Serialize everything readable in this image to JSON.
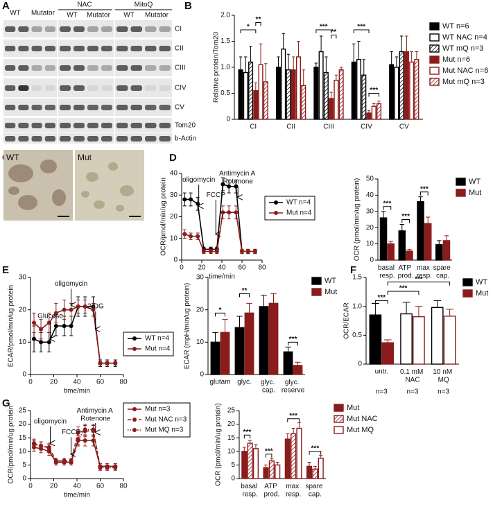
{
  "panels": [
    "A",
    "B",
    "C",
    "D",
    "E",
    "F",
    "G"
  ],
  "blot": {
    "lanes": [
      "WT",
      "Mutator",
      "WT",
      "Mutator",
      "WT",
      "Mutator"
    ],
    "groups": [
      "NAC",
      "MitoQ"
    ],
    "bands": [
      "CI",
      "CII",
      "CIII",
      "CIV",
      "CV",
      "Tom20",
      "b-Actin"
    ]
  },
  "micrograph": {
    "labels": [
      "WT",
      "Mut"
    ]
  },
  "chart_data": [
    {
      "type": "bar",
      "ylabel": "Relative protein/Tom20",
      "categories": [
        "CI",
        "CII",
        "CIII",
        "CIV",
        "CV"
      ],
      "series": [
        {
          "name": "WT n=6",
          "color": "#000000",
          "values": [
            0.95,
            1.0,
            1.0,
            1.1,
            1.05
          ],
          "errors": [
            0.25,
            0.2,
            0.08,
            0.35,
            0.25
          ]
        },
        {
          "name": "WT NAC n=4",
          "color": "#000000",
          "fill": "#ffffff",
          "values": [
            0.9,
            1.35,
            1.3,
            1.15,
            1.0
          ],
          "errors": [
            0.3,
            0.3,
            0.3,
            0.35,
            0.2
          ]
        },
        {
          "name": "WT mQ n=3",
          "color": "#000000",
          "pattern": "hatch",
          "values": [
            1.1,
            0.95,
            0.9,
            0.85,
            1.3
          ],
          "errors": [
            0.3,
            0.3,
            0.3,
            0.3,
            0.3
          ]
        },
        {
          "name": "Mut n=6",
          "color": "#8b1c1c",
          "values": [
            0.55,
            0.95,
            0.4,
            0.12,
            1.3
          ],
          "errors": [
            0.15,
            0.25,
            0.12,
            0.05,
            0.3
          ]
        },
        {
          "name": "Mut NAC n=6",
          "color": "#8b1c1c",
          "fill": "#ffffff",
          "values": [
            1.05,
            1.2,
            0.75,
            0.25,
            1.1
          ],
          "errors": [
            0.4,
            0.3,
            0.1,
            0.05,
            0.2
          ]
        },
        {
          "name": "Mut mQ n=3",
          "color": "#8b1c1c",
          "pattern": "hatch",
          "values": [
            0.72,
            0.65,
            0.95,
            0.3,
            1.15
          ],
          "errors": [
            0.35,
            0.3,
            0.05,
            0.05,
            0.15
          ]
        }
      ],
      "ylim": [
        0,
        2
      ],
      "yticks": [
        0,
        0.5,
        {
          "value": 1,
          "label": "1.0"
        },
        1.5,
        {
          "value": 2,
          "label": "2.0"
        }
      ],
      "annotations": [
        "*",
        "**",
        "***",
        "**",
        "***",
        "***"
      ]
    },
    {
      "type": "line",
      "xlabel": "time/min",
      "ylabel": "OCR/pmol/min/ug protein",
      "x": [
        3,
        9,
        16,
        22,
        29,
        35,
        41,
        47,
        54,
        60,
        66,
        73
      ],
      "series": [
        {
          "name": "WT n=4",
          "color": "#000000",
          "values": [
            28,
            28,
            26,
            5,
            5,
            5,
            35,
            34,
            34,
            4,
            4,
            4
          ],
          "errors": [
            3,
            3,
            3,
            1,
            1,
            1,
            3,
            3,
            3,
            1,
            1,
            1
          ]
        },
        {
          "name": "Mut n=4",
          "color": "#8b1c1c",
          "values": [
            12,
            11,
            11,
            4,
            4,
            4,
            22,
            22,
            22,
            4,
            4,
            4
          ],
          "errors": [
            2,
            1.5,
            1.5,
            1,
            1,
            1,
            3,
            3,
            3,
            1,
            1,
            1
          ]
        }
      ],
      "xlim": [
        0,
        80
      ],
      "xticks": [
        0,
        20,
        40,
        60,
        80
      ],
      "ylim": [
        0,
        40
      ],
      "yticks": [
        0,
        10,
        20,
        30,
        40
      ],
      "annotations": [
        "oligomycin",
        "FCCP",
        "Antimycin A Rotenone"
      ]
    },
    {
      "type": "bar",
      "ylabel": "OCR (pmol/min/ug protein)",
      "categories": [
        "basal resp.",
        "ATP prod.",
        "max resp.",
        "spare cap."
      ],
      "series": [
        {
          "name": "WT",
          "color": "#000000",
          "values": [
            26,
            18,
            36,
            9.5
          ],
          "errors": [
            4,
            4,
            3,
            2.5
          ]
        },
        {
          "name": "Mut",
          "color": "#8b1c1c",
          "values": [
            10,
            5.5,
            22.5,
            12
          ],
          "errors": [
            1.5,
            1,
            4,
            3
          ]
        }
      ],
      "ylim": [
        0,
        50
      ],
      "yticks": [
        0,
        10,
        20,
        30,
        40,
        50
      ],
      "annotations": [
        "***",
        "***",
        "***"
      ]
    },
    {
      "type": "line",
      "xlabel": "time/min",
      "ylabel": "ECAR/pmol/min/ug protein",
      "x": [
        3,
        9,
        16,
        22,
        29,
        35,
        41,
        47,
        54,
        60,
        66,
        73
      ],
      "series": [
        {
          "name": "WT n=4",
          "color": "#000000",
          "values": [
            11,
            10,
            10,
            15,
            15,
            15,
            21,
            21,
            21,
            3.5,
            3.5,
            3.5
          ],
          "errors": [
            4,
            3,
            3,
            3,
            3,
            3,
            3,
            3,
            3,
            1,
            1,
            1
          ]
        },
        {
          "name": "Mut n=4",
          "color": "#8b1c1c",
          "values": [
            16,
            14,
            16,
            19,
            20,
            20,
            21,
            21,
            20,
            3.5,
            3.5,
            3.5
          ],
          "errors": [
            3,
            3,
            3,
            3,
            3,
            2,
            2,
            2,
            2,
            0.5,
            0.5,
            0.5
          ]
        }
      ],
      "xlim": [
        0,
        80
      ],
      "xticks": [
        0,
        20,
        40,
        60,
        80
      ],
      "ylim": [
        0,
        30
      ],
      "yticks": [
        0,
        10,
        20,
        30
      ],
      "annotations": [
        "Glucose",
        "oligomycin",
        "2-DG"
      ]
    },
    {
      "type": "bar",
      "ylabel": "ECAR (mpH/min/ug protein)",
      "categories": [
        "glutam",
        "glyc.",
        "glyc. cap.",
        "glyc. reserve"
      ],
      "series": [
        {
          "name": "WT",
          "color": "#000000",
          "values": [
            10,
            14.5,
            21,
            7
          ],
          "errors": [
            3,
            3.5,
            3.5,
            1.5
          ]
        },
        {
          "name": "Mut",
          "color": "#8b1c1c",
          "values": [
            13,
            19,
            22,
            2.8
          ],
          "errors": [
            4,
            3,
            3,
            1
          ]
        }
      ],
      "ylim": [
        0,
        30
      ],
      "yticks": [
        0,
        10,
        20,
        30
      ],
      "annotations": [
        "*",
        "**",
        "***"
      ]
    },
    {
      "type": "bar",
      "ylabel": "OCR/ECAR",
      "categories": [
        "untr.",
        "0.1 mM NAC",
        "10 nM MQ"
      ],
      "n_labels": [
        "n=3",
        "n=3",
        "n=3"
      ],
      "series": [
        {
          "name": "WT",
          "color": "#000000",
          "fill": [
            "#000000",
            "#ffffff",
            "#ffffff"
          ],
          "values": [
            0.85,
            0.87,
            0.98
          ],
          "errors": [
            0.2,
            0.2,
            0.12
          ]
        },
        {
          "name": "Mut",
          "color": "#8b1c1c",
          "fill": [
            "#8b1c1c",
            "#ffffff",
            "#ffffff"
          ],
          "values": [
            0.37,
            0.82,
            0.83
          ],
          "errors": [
            0.05,
            0.18,
            0.12
          ]
        }
      ],
      "ylim": [
        0,
        1.5
      ],
      "yticks": [
        0,
        0.5,
        {
          "value": 1,
          "label": "1.0"
        },
        1.5
      ],
      "annotations": [
        "***",
        "***",
        "***"
      ]
    },
    {
      "type": "line",
      "xlabel": "time/min",
      "ylabel": "OCR/pmol/min/ug protein",
      "x": [
        3,
        9,
        16,
        22,
        29,
        35,
        41,
        47,
        54,
        60,
        66,
        73
      ],
      "series": [
        {
          "name": "Mut n=3",
          "color": "#8b1c1c",
          "dash": "solid",
          "values": [
            11.5,
            11,
            10,
            6,
            6,
            6,
            14,
            14,
            14,
            4.5,
            4.5,
            4.5
          ],
          "errors": [
            1.5,
            1.5,
            1.5,
            1,
            1,
            1,
            2,
            2,
            2,
            1,
            1,
            1
          ]
        },
        {
          "name": "Mut NAC n=3",
          "color": "#8b1c1c",
          "dash": "dashed",
          "values": [
            13,
            12,
            11.5,
            6.5,
            6.5,
            6.5,
            17,
            17.5,
            17.5,
            4.5,
            4.5,
            4.5
          ],
          "errors": [
            1.5,
            1.5,
            1.5,
            1,
            1,
            1,
            2,
            2,
            2,
            1,
            1,
            1
          ]
        },
        {
          "name": "Mut MQ n=3",
          "color": "#8b1c1c",
          "dash": "dotted",
          "values": [
            12.5,
            12,
            11,
            6,
            6,
            6,
            14.5,
            18,
            18,
            4,
            4,
            4
          ],
          "errors": [
            1.5,
            1.5,
            1.5,
            1,
            1,
            1,
            2,
            2,
            2,
            1,
            1,
            1
          ]
        }
      ],
      "xlim": [
        0,
        80
      ],
      "xticks": [
        0,
        20,
        40,
        60,
        80
      ],
      "ylim": [
        0,
        25
      ],
      "yticks": [
        0,
        5,
        10,
        15,
        20,
        25
      ],
      "annotations": [
        "oligomycin",
        "FCCP",
        "Antimycin A Rotenone"
      ]
    },
    {
      "type": "bar",
      "ylabel": "OCR (pmol/min/ug protein)",
      "categories": [
        "basal resp.",
        "ATP prod.",
        "max resp.",
        "spare cap."
      ],
      "series": [
        {
          "name": "Mut",
          "color": "#8b1c1c",
          "values": [
            10,
            4,
            14.5,
            4.5
          ],
          "errors": [
            1.5,
            1,
            2,
            1.5
          ]
        },
        {
          "name": "Mut NAC",
          "color": "#8b1c1c",
          "pattern": "hatch",
          "values": [
            13,
            6.5,
            16.5,
            3.5
          ],
          "errors": [
            1,
            1,
            2,
            1
          ]
        },
        {
          "name": "Mut MQ",
          "color": "#8b1c1c",
          "fill": "#ffffff",
          "values": [
            11,
            5,
            18.5,
            7.5
          ],
          "errors": [
            1.5,
            1,
            2,
            1
          ]
        }
      ],
      "ylim": [
        0,
        25
      ],
      "yticks": [
        0,
        5,
        10,
        15,
        20,
        25
      ],
      "annotations": [
        "***",
        "***",
        "***",
        "***"
      ]
    }
  ]
}
